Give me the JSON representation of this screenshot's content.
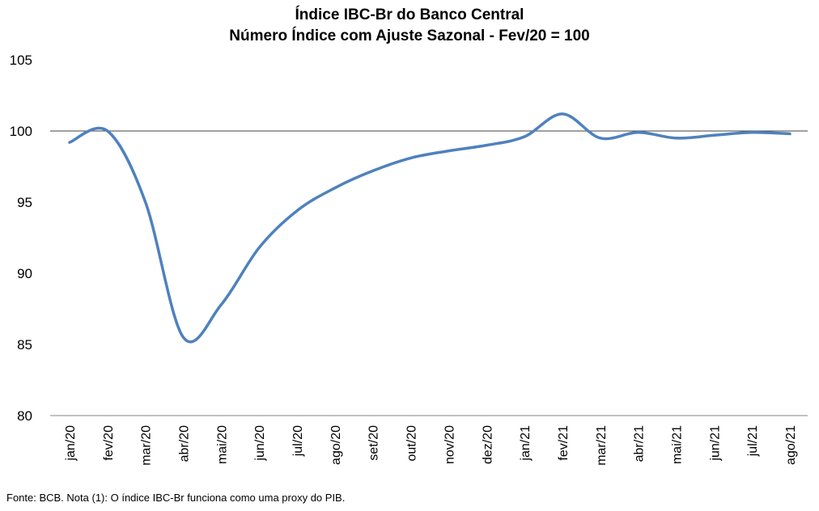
{
  "chart_data": {
    "type": "line",
    "title": "Índice IBC-Br do Banco Central",
    "subtitle": "Número Índice com Ajuste Sazonal - Fev/20 = 100",
    "xlabel": "",
    "ylabel": "",
    "ylim": [
      80,
      105
    ],
    "yticks": [
      "105",
      "100",
      "95",
      "90",
      "85",
      "80"
    ],
    "categories": [
      "jan/20",
      "fev/20",
      "mar/20",
      "abr/20",
      "mai/20",
      "jun/20",
      "jul/20",
      "ago/20",
      "set/20",
      "out/20",
      "nov/20",
      "dez/20",
      "jan/21",
      "fev/21",
      "mar/21",
      "abr/21",
      "mai/21",
      "jun/21",
      "jul/21",
      "ago/21"
    ],
    "series": [
      {
        "values": [
          99.2,
          100.0,
          95.0,
          85.5,
          87.8,
          91.8,
          94.4,
          96.0,
          97.2,
          98.1,
          98.6,
          99.0,
          99.6,
          101.2,
          99.5,
          99.9,
          99.5,
          99.7,
          99.9,
          99.8
        ],
        "color": "#4f81bd"
      }
    ],
    "reference_line": 100,
    "grid": false,
    "legend": "none"
  },
  "footer": {
    "note": "Fonte: BCB. Nota (1): O índice IBC-Br funciona como uma proxy do PIB."
  }
}
